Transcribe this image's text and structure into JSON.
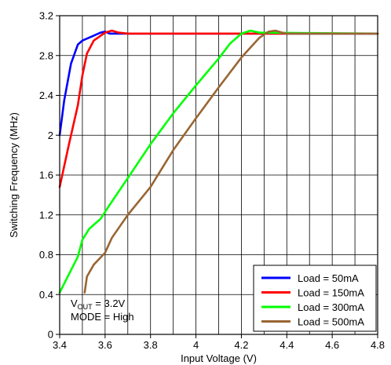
{
  "chart_data": {
    "type": "line",
    "xlabel": "Input Voltage (V)",
    "ylabel": "Switching Frequency (MHz)",
    "xlim": [
      3.4,
      4.8
    ],
    "ylim": [
      0,
      3.2
    ],
    "x_ticks": [
      "3.4",
      "3.6",
      "3.8",
      "4",
      "4.2",
      "4.4",
      "4.6",
      "4.8"
    ],
    "y_ticks": [
      "0",
      "0.4",
      "0.8",
      "1.2",
      "1.6",
      "2",
      "2.4",
      "2.8",
      "3.2"
    ],
    "x_tick_values": [
      3.4,
      3.6,
      3.8,
      4.0,
      4.2,
      4.4,
      4.6,
      4.8
    ],
    "y_tick_values": [
      0,
      0.4,
      0.8,
      1.2,
      1.6,
      2.0,
      2.4,
      2.8,
      3.2
    ],
    "x_minor_step": 0.1,
    "grid": true,
    "legend_position": "bottom-right",
    "annotation": {
      "line1_main": "V",
      "line1_sub": "OUT",
      "line1_rest": " = 3.2V",
      "line2": "MODE = High"
    },
    "series": [
      {
        "name": "Load = 50mA",
        "color": "#0000ff",
        "points": [
          [
            3.4,
            2.0
          ],
          [
            3.42,
            2.35
          ],
          [
            3.45,
            2.72
          ],
          [
            3.48,
            2.91
          ],
          [
            3.5,
            2.95
          ],
          [
            3.54,
            2.99
          ],
          [
            3.58,
            3.03
          ],
          [
            3.6,
            3.04
          ],
          [
            3.62,
            3.02
          ],
          [
            4.8,
            3.02
          ]
        ]
      },
      {
        "name": "Load = 150mA",
        "color": "#ff0000",
        "points": [
          [
            3.4,
            1.48
          ],
          [
            3.44,
            1.9
          ],
          [
            3.48,
            2.3
          ],
          [
            3.5,
            2.6
          ],
          [
            3.52,
            2.82
          ],
          [
            3.55,
            2.95
          ],
          [
            3.6,
            3.03
          ],
          [
            3.63,
            3.05
          ],
          [
            3.66,
            3.03
          ],
          [
            3.7,
            3.02
          ],
          [
            4.8,
            3.02
          ]
        ]
      },
      {
        "name": "Load = 300mA",
        "color": "#00ff00",
        "points": [
          [
            3.4,
            0.42
          ],
          [
            3.48,
            0.78
          ],
          [
            3.5,
            0.95
          ],
          [
            3.53,
            1.06
          ],
          [
            3.58,
            1.16
          ],
          [
            3.62,
            1.3
          ],
          [
            3.7,
            1.57
          ],
          [
            3.8,
            1.91
          ],
          [
            3.9,
            2.22
          ],
          [
            4.0,
            2.5
          ],
          [
            4.1,
            2.77
          ],
          [
            4.15,
            2.92
          ],
          [
            4.2,
            3.02
          ],
          [
            4.24,
            3.05
          ],
          [
            4.28,
            3.03
          ],
          [
            4.8,
            3.02
          ]
        ]
      },
      {
        "name": "Load = 500mA",
        "color": "#996633",
        "points": [
          [
            3.51,
            0.42
          ],
          [
            3.52,
            0.58
          ],
          [
            3.55,
            0.7
          ],
          [
            3.6,
            0.82
          ],
          [
            3.63,
            0.97
          ],
          [
            3.7,
            1.2
          ],
          [
            3.8,
            1.48
          ],
          [
            3.9,
            1.85
          ],
          [
            4.0,
            2.17
          ],
          [
            4.1,
            2.48
          ],
          [
            4.2,
            2.78
          ],
          [
            4.28,
            2.98
          ],
          [
            4.32,
            3.04
          ],
          [
            4.35,
            3.05
          ],
          [
            4.38,
            3.03
          ],
          [
            4.4,
            3.02
          ],
          [
            4.8,
            3.02
          ]
        ]
      }
    ]
  }
}
